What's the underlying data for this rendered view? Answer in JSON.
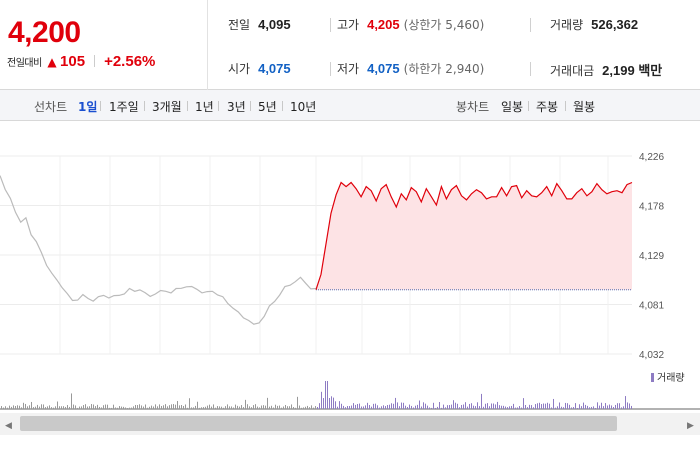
{
  "summary": {
    "current_price": "4,200",
    "change_label": "전일대비",
    "change_arrow": "▲",
    "change_value": "105",
    "change_percent": "+2.56%",
    "prev_close_label": "전일",
    "prev_close": "4,095",
    "open_label": "시가",
    "open": "4,075",
    "high_label": "고가",
    "high": "4,205",
    "upper_limit": "(상한가 5,460)",
    "low_label": "저가",
    "low": "4,075",
    "lower_limit": "(하한가 2,940)",
    "volume_label": "거래량",
    "volume": "526,362",
    "amount_label": "거래대금",
    "amount": "2,199 백만"
  },
  "periodbar": {
    "line_label": "선차트",
    "line_options": [
      "1일",
      "1주일",
      "3개월",
      "1년",
      "3년",
      "5년",
      "10년"
    ],
    "active_line": "1일",
    "candle_label": "봉차트",
    "candle_options": [
      "일봉",
      "주봉",
      "월봉"
    ]
  },
  "colors": {
    "up": "#e0000b",
    "down": "#1261c4",
    "prev_line": "#bbbbbb",
    "fill": "#fde3e5",
    "volume_bar": "#8e7cc3",
    "volume_prev": "#999999"
  },
  "chart_data": {
    "type": "line",
    "xlabel": "",
    "ylabel": "",
    "y_ticks": [
      "4,226",
      "4,178",
      "4,129",
      "4,081",
      "4,032"
    ],
    "ylim": [
      4032,
      4226
    ],
    "baseline": 4095,
    "grid": true,
    "volume_legend": "거래량",
    "series": [
      {
        "values": [
          4208,
          4192,
          4185,
          4172,
          4160,
          4166,
          4150,
          4141,
          4132,
          4120,
          4110,
          4105,
          4098,
          4090,
          4085,
          4086,
          4089,
          4087,
          4085,
          4087,
          4090,
          4088,
          4088,
          4090,
          4092,
          4095,
          4094,
          4096,
          4091,
          4089,
          4092,
          4093,
          4094,
          4093,
          4095,
          4097,
          4099,
          4097,
          4096,
          4093,
          4092,
          4094,
          4091,
          4087,
          4082,
          4078,
          4072,
          4068,
          4066,
          4060,
          4063,
          4070,
          4078,
          4084,
          4091,
          4097,
          4100,
          4104,
          4106,
          4102,
          4097,
          4095
        ]
      },
      {
        "values": [
          4095,
          4110,
          4140,
          4170,
          4188,
          4200,
          4196,
          4200,
          4194,
          4186,
          4196,
          4192,
          4182,
          4194,
          4198,
          4186,
          4176,
          4189,
          4183,
          4195,
          4191,
          4181,
          4194,
          4186,
          4178,
          4196,
          4184,
          4193,
          4197,
          4187,
          4183,
          4189,
          4193,
          4190,
          4184,
          4186,
          4186,
          4195,
          4187,
          4196,
          4197,
          4185,
          4192,
          4187,
          4186,
          4190,
          4196,
          4187,
          4199,
          4192,
          4184,
          4184,
          4190,
          4194,
          4187,
          4191,
          4199,
          4193,
          4189,
          4191,
          4192,
          4190,
          4198,
          4200
        ]
      }
    ]
  }
}
